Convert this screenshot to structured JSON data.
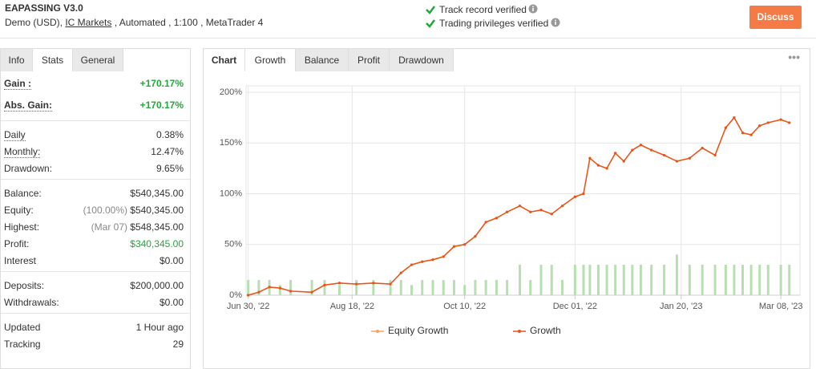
{
  "header": {
    "title": "EAPASSING V3.0",
    "subtitle": [
      "Demo (USD), ",
      "IC Markets",
      " , Automated , 1:100 , MetaTrader 4"
    ],
    "verified": [
      "Track record verified",
      "Trading privileges verified"
    ],
    "button": "Discuss"
  },
  "left_tabs": {
    "items": [
      "Info",
      "Stats",
      "General"
    ],
    "active": 1
  },
  "stats": [
    [
      {
        "label": "Gain :",
        "value": "+170.17%",
        "color": "#22a83a"
      },
      {
        "label": "Abs. Gain:",
        "value": "+170.17%",
        "color": "#22a83a"
      }
    ],
    [
      {
        "label": "Daily",
        "value": "0.38%"
      },
      {
        "label": "Monthly:",
        "value": "12.47%"
      },
      {
        "label": "Drawdown:",
        "value": "9.65%"
      }
    ],
    [
      {
        "label": "Balance:",
        "value": "$540,345.00"
      },
      {
        "label": "Equity:",
        "note": "(100.00%)",
        "value": "$540,345.00"
      },
      {
        "label": "Highest:",
        "note": "(Mar 07)",
        "value": "$548,345.00"
      },
      {
        "label": "Profit:",
        "value": "$340,345.00",
        "color": "#22a83a"
      },
      {
        "label": "Interest",
        "value": "$0.00"
      }
    ],
    [
      {
        "label": "Deposits:",
        "value": "$200,000.00"
      },
      {
        "label": "Withdrawals:",
        "value": "$0.00"
      }
    ],
    [
      {
        "label": "Updated",
        "value": "1 Hour ago"
      },
      {
        "label": "Tracking",
        "value": "29"
      }
    ]
  ],
  "chart_tabs": {
    "items": [
      "Chart",
      "Growth",
      "Balance",
      "Profit",
      "Drawdown"
    ],
    "active": 1
  },
  "chart_data": {
    "type": "line",
    "x": [
      "2022-06-30",
      "2022-07-05",
      "2022-07-10",
      "2022-07-15",
      "2022-07-20",
      "2022-07-30",
      "2022-08-05",
      "2022-08-12",
      "2022-08-20",
      "2022-08-28",
      "2022-09-05",
      "2022-09-10",
      "2022-09-15",
      "2022-09-20",
      "2022-09-25",
      "2022-09-30",
      "2022-10-05",
      "2022-10-10",
      "2022-10-15",
      "2022-10-20",
      "2022-10-25",
      "2022-10-30",
      "2022-11-05",
      "2022-11-10",
      "2022-11-15",
      "2022-11-20",
      "2022-11-25",
      "2022-12-01",
      "2022-12-05",
      "2022-12-08",
      "2022-12-12",
      "2022-12-16",
      "2022-12-20",
      "2022-12-24",
      "2022-12-28",
      "2023-01-01",
      "2023-01-06",
      "2023-01-12",
      "2023-01-18",
      "2023-01-24",
      "2023-01-30",
      "2023-02-05",
      "2023-02-10",
      "2023-02-14",
      "2023-02-18",
      "2023-02-22",
      "2023-02-26",
      "2023-03-02",
      "2023-03-08",
      "2023-03-12"
    ],
    "series": [
      {
        "name": "Equity Growth",
        "color": "#f7a35c",
        "values": [
          0,
          3,
          8,
          7,
          4,
          3,
          10,
          12,
          11,
          12,
          11,
          22,
          30,
          33,
          35,
          38,
          48,
          50,
          58,
          72,
          76,
          82,
          88,
          82,
          84,
          80,
          88,
          97,
          100,
          135,
          128,
          125,
          140,
          132,
          143,
          148,
          143,
          138,
          132,
          135,
          145,
          138,
          165,
          175,
          160,
          158,
          167,
          170,
          173,
          170
        ]
      },
      {
        "name": "Growth",
        "color": "#e8541c",
        "values": [
          0,
          3,
          8,
          7,
          4,
          3,
          10,
          12,
          11,
          12,
          11,
          22,
          30,
          33,
          35,
          38,
          48,
          50,
          58,
          72,
          76,
          82,
          88,
          82,
          84,
          80,
          88,
          97,
          100,
          135,
          128,
          125,
          140,
          132,
          143,
          148,
          143,
          138,
          132,
          135,
          145,
          138,
          165,
          175,
          160,
          158,
          167,
          170,
          173,
          170
        ]
      }
    ],
    "bars": {
      "color": "#b7e0b0",
      "values": [
        15,
        15,
        15,
        10,
        15,
        15,
        15,
        10,
        15,
        15,
        15,
        15,
        10,
        15,
        15,
        15,
        15,
        10,
        15,
        15,
        15,
        15,
        30,
        15,
        30,
        30,
        15,
        30,
        30,
        30,
        30,
        30,
        30,
        30,
        30,
        30,
        30,
        30,
        40,
        30,
        30,
        30,
        30,
        30,
        30,
        30,
        30,
        30,
        30,
        30
      ]
    },
    "xlim": [
      "2022-06-29",
      "2023-03-17"
    ],
    "xticks": [
      {
        "value": "2022-06-30",
        "label": "Jun 30, '22"
      },
      {
        "value": "2022-08-18",
        "label": "Aug 18, '22"
      },
      {
        "value": "2022-10-10",
        "label": "Oct 10, '22"
      },
      {
        "value": "2022-12-01",
        "label": "Dec 01, '22"
      },
      {
        "value": "2023-01-20",
        "label": "Jan 20, '23"
      },
      {
        "value": "2023-03-08",
        "label": "Mar 08, '23"
      }
    ],
    "ylim": [
      0,
      200
    ],
    "yticks": [
      {
        "value": 0,
        "label": "0%"
      },
      {
        "value": 50,
        "label": "50%"
      },
      {
        "value": 100,
        "label": "100%"
      },
      {
        "value": 150,
        "label": "150%"
      },
      {
        "value": 200,
        "label": "200%"
      }
    ],
    "grid": true
  }
}
